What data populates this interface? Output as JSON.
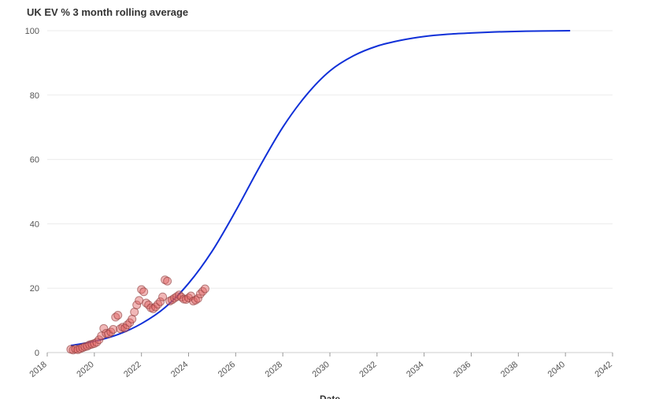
{
  "chart_data": {
    "type": "scatter",
    "title": "UK EV % 3 month rolling average",
    "xlabel": "Date",
    "ylabel": "",
    "xlim": [
      2018,
      2042
    ],
    "ylim": [
      0,
      100
    ],
    "x_ticks": [
      "2018",
      "2020",
      "2022",
      "2024",
      "2026",
      "2028",
      "2030",
      "2032",
      "2034",
      "2036",
      "2038",
      "2040",
      "2042"
    ],
    "y_ticks": [
      "0",
      "20",
      "40",
      "60",
      "80",
      "100"
    ],
    "grid": true,
    "colors": {
      "points_fill": "#e06060",
      "points_stroke": "#8a3a3a",
      "curve": "#1030d8",
      "grid": "#ebebeb"
    },
    "series": [
      {
        "type": "scatter",
        "points": [
          [
            2019.0,
            1.0
          ],
          [
            2019.1,
            0.8
          ],
          [
            2019.2,
            1.1
          ],
          [
            2019.3,
            0.9
          ],
          [
            2019.4,
            1.2
          ],
          [
            2019.5,
            1.5
          ],
          [
            2019.6,
            1.8
          ],
          [
            2019.7,
            2.0
          ],
          [
            2019.8,
            2.4
          ],
          [
            2019.9,
            2.6
          ],
          [
            2020.0,
            2.8
          ],
          [
            2020.1,
            3.2
          ],
          [
            2020.2,
            4.0
          ],
          [
            2020.3,
            5.2
          ],
          [
            2020.4,
            7.5
          ],
          [
            2020.5,
            6.0
          ],
          [
            2020.6,
            5.8
          ],
          [
            2020.7,
            6.4
          ],
          [
            2020.8,
            7.2
          ],
          [
            2020.9,
            11.0
          ],
          [
            2021.0,
            11.6
          ],
          [
            2021.1,
            7.4
          ],
          [
            2021.2,
            7.9
          ],
          [
            2021.3,
            7.6
          ],
          [
            2021.4,
            8.6
          ],
          [
            2021.5,
            9.3
          ],
          [
            2021.6,
            10.4
          ],
          [
            2021.7,
            12.6
          ],
          [
            2021.8,
            14.8
          ],
          [
            2021.9,
            16.2
          ],
          [
            2022.0,
            19.6
          ],
          [
            2022.1,
            18.9
          ],
          [
            2022.2,
            15.4
          ],
          [
            2022.3,
            14.8
          ],
          [
            2022.4,
            13.9
          ],
          [
            2022.5,
            13.6
          ],
          [
            2022.6,
            14.2
          ],
          [
            2022.7,
            15.0
          ],
          [
            2022.8,
            15.8
          ],
          [
            2022.9,
            17.3
          ],
          [
            2023.0,
            22.6
          ],
          [
            2023.1,
            22.2
          ],
          [
            2023.2,
            16.0
          ],
          [
            2023.3,
            16.4
          ],
          [
            2023.4,
            16.9
          ],
          [
            2023.5,
            17.4
          ],
          [
            2023.6,
            17.9
          ],
          [
            2023.7,
            17.2
          ],
          [
            2023.8,
            16.6
          ],
          [
            2023.9,
            16.5
          ],
          [
            2024.0,
            17.0
          ],
          [
            2024.1,
            17.6
          ],
          [
            2024.2,
            16.0
          ],
          [
            2024.3,
            16.3
          ],
          [
            2024.4,
            16.8
          ],
          [
            2024.5,
            18.2
          ],
          [
            2024.6,
            19.0
          ],
          [
            2024.7,
            19.8
          ]
        ]
      },
      {
        "type": "line",
        "x_start": 2019.0,
        "x_end": 2040.2,
        "points": [
          [
            2019.0,
            2.2
          ],
          [
            2020.0,
            3.5
          ],
          [
            2021.0,
            5.6
          ],
          [
            2022.0,
            9.0
          ],
          [
            2023.0,
            14.0
          ],
          [
            2024.0,
            21.5
          ],
          [
            2025.0,
            31.5
          ],
          [
            2026.0,
            44.0
          ],
          [
            2027.0,
            57.5
          ],
          [
            2028.0,
            70.0
          ],
          [
            2029.0,
            80.0
          ],
          [
            2030.0,
            87.5
          ],
          [
            2031.0,
            92.2
          ],
          [
            2032.0,
            95.2
          ],
          [
            2033.0,
            97.0
          ],
          [
            2034.0,
            98.2
          ],
          [
            2035.0,
            98.9
          ],
          [
            2036.0,
            99.3
          ],
          [
            2037.0,
            99.6
          ],
          [
            2038.0,
            99.8
          ],
          [
            2039.0,
            99.9
          ],
          [
            2040.2,
            100.0
          ]
        ]
      }
    ]
  }
}
